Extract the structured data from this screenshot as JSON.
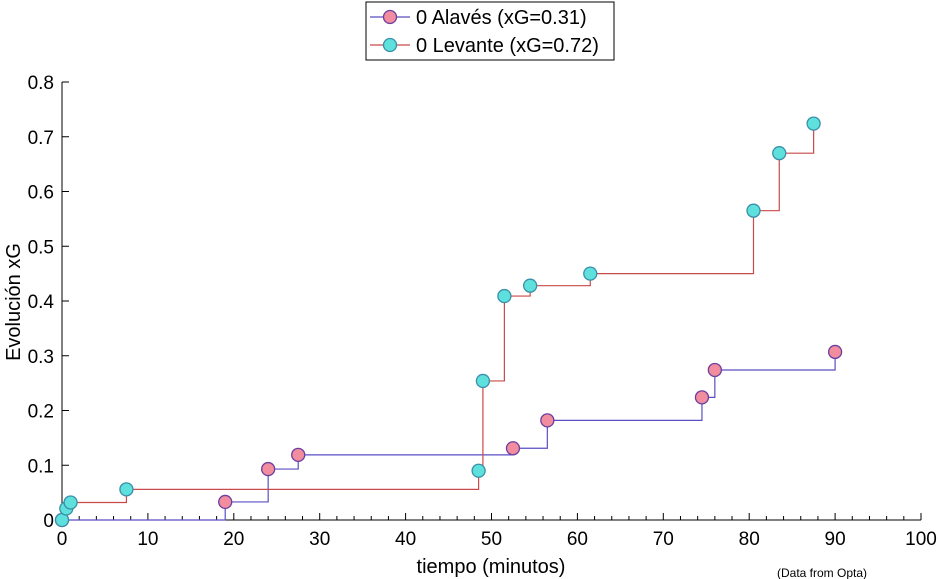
{
  "chart_data": {
    "type": "line",
    "step": true,
    "xlabel": "tiempo (minutos)",
    "ylabel": "Evolución xG",
    "xlim": [
      0,
      100
    ],
    "ylim": [
      0,
      0.8
    ],
    "xticks": [
      0,
      10,
      20,
      30,
      40,
      50,
      60,
      70,
      80,
      90,
      100
    ],
    "yticks": [
      0,
      0.1,
      0.2,
      0.3,
      0.4,
      0.5,
      0.6,
      0.7,
      0.8
    ],
    "xtick_labels": [
      "0",
      "10",
      "20",
      "30",
      "40",
      "50",
      "60",
      "70",
      "80",
      "90",
      "100"
    ],
    "ytick_labels": [
      "0",
      "0.1",
      "0.2",
      "0.3",
      "0.4",
      "0.5",
      "0.6",
      "0.7",
      "0.8"
    ],
    "grid": false,
    "legend_position": "top-center",
    "source_note": "(Data from Opta)",
    "series": [
      {
        "name": "0 Alavés (xG=0.31)",
        "line_color": "#5a4fc4",
        "marker_fill": "#f28c9f",
        "marker_edge": "#6b3fa0",
        "points": [
          {
            "x": 0,
            "y": 0
          },
          {
            "x": 19,
            "y": 0.033
          },
          {
            "x": 24,
            "y": 0.093
          },
          {
            "x": 27.5,
            "y": 0.119
          },
          {
            "x": 52.5,
            "y": 0.131
          },
          {
            "x": 56.5,
            "y": 0.182
          },
          {
            "x": 74.5,
            "y": 0.224
          },
          {
            "x": 76,
            "y": 0.274
          },
          {
            "x": 90,
            "y": 0.307
          }
        ]
      },
      {
        "name": "0 Levante (xG=0.72)",
        "line_color": "#c94a4a",
        "marker_fill": "#5ee0dc",
        "marker_edge": "#3a8fa8",
        "points": [
          {
            "x": 0,
            "y": 0
          },
          {
            "x": 0.5,
            "y": 0.021
          },
          {
            "x": 1,
            "y": 0.032
          },
          {
            "x": 7.5,
            "y": 0.056
          },
          {
            "x": 48.5,
            "y": 0.09
          },
          {
            "x": 49,
            "y": 0.254
          },
          {
            "x": 51.5,
            "y": 0.409
          },
          {
            "x": 54.5,
            "y": 0.428
          },
          {
            "x": 61.5,
            "y": 0.45
          },
          {
            "x": 80.5,
            "y": 0.565
          },
          {
            "x": 83.5,
            "y": 0.67
          },
          {
            "x": 87.5,
            "y": 0.724
          }
        ]
      }
    ]
  }
}
